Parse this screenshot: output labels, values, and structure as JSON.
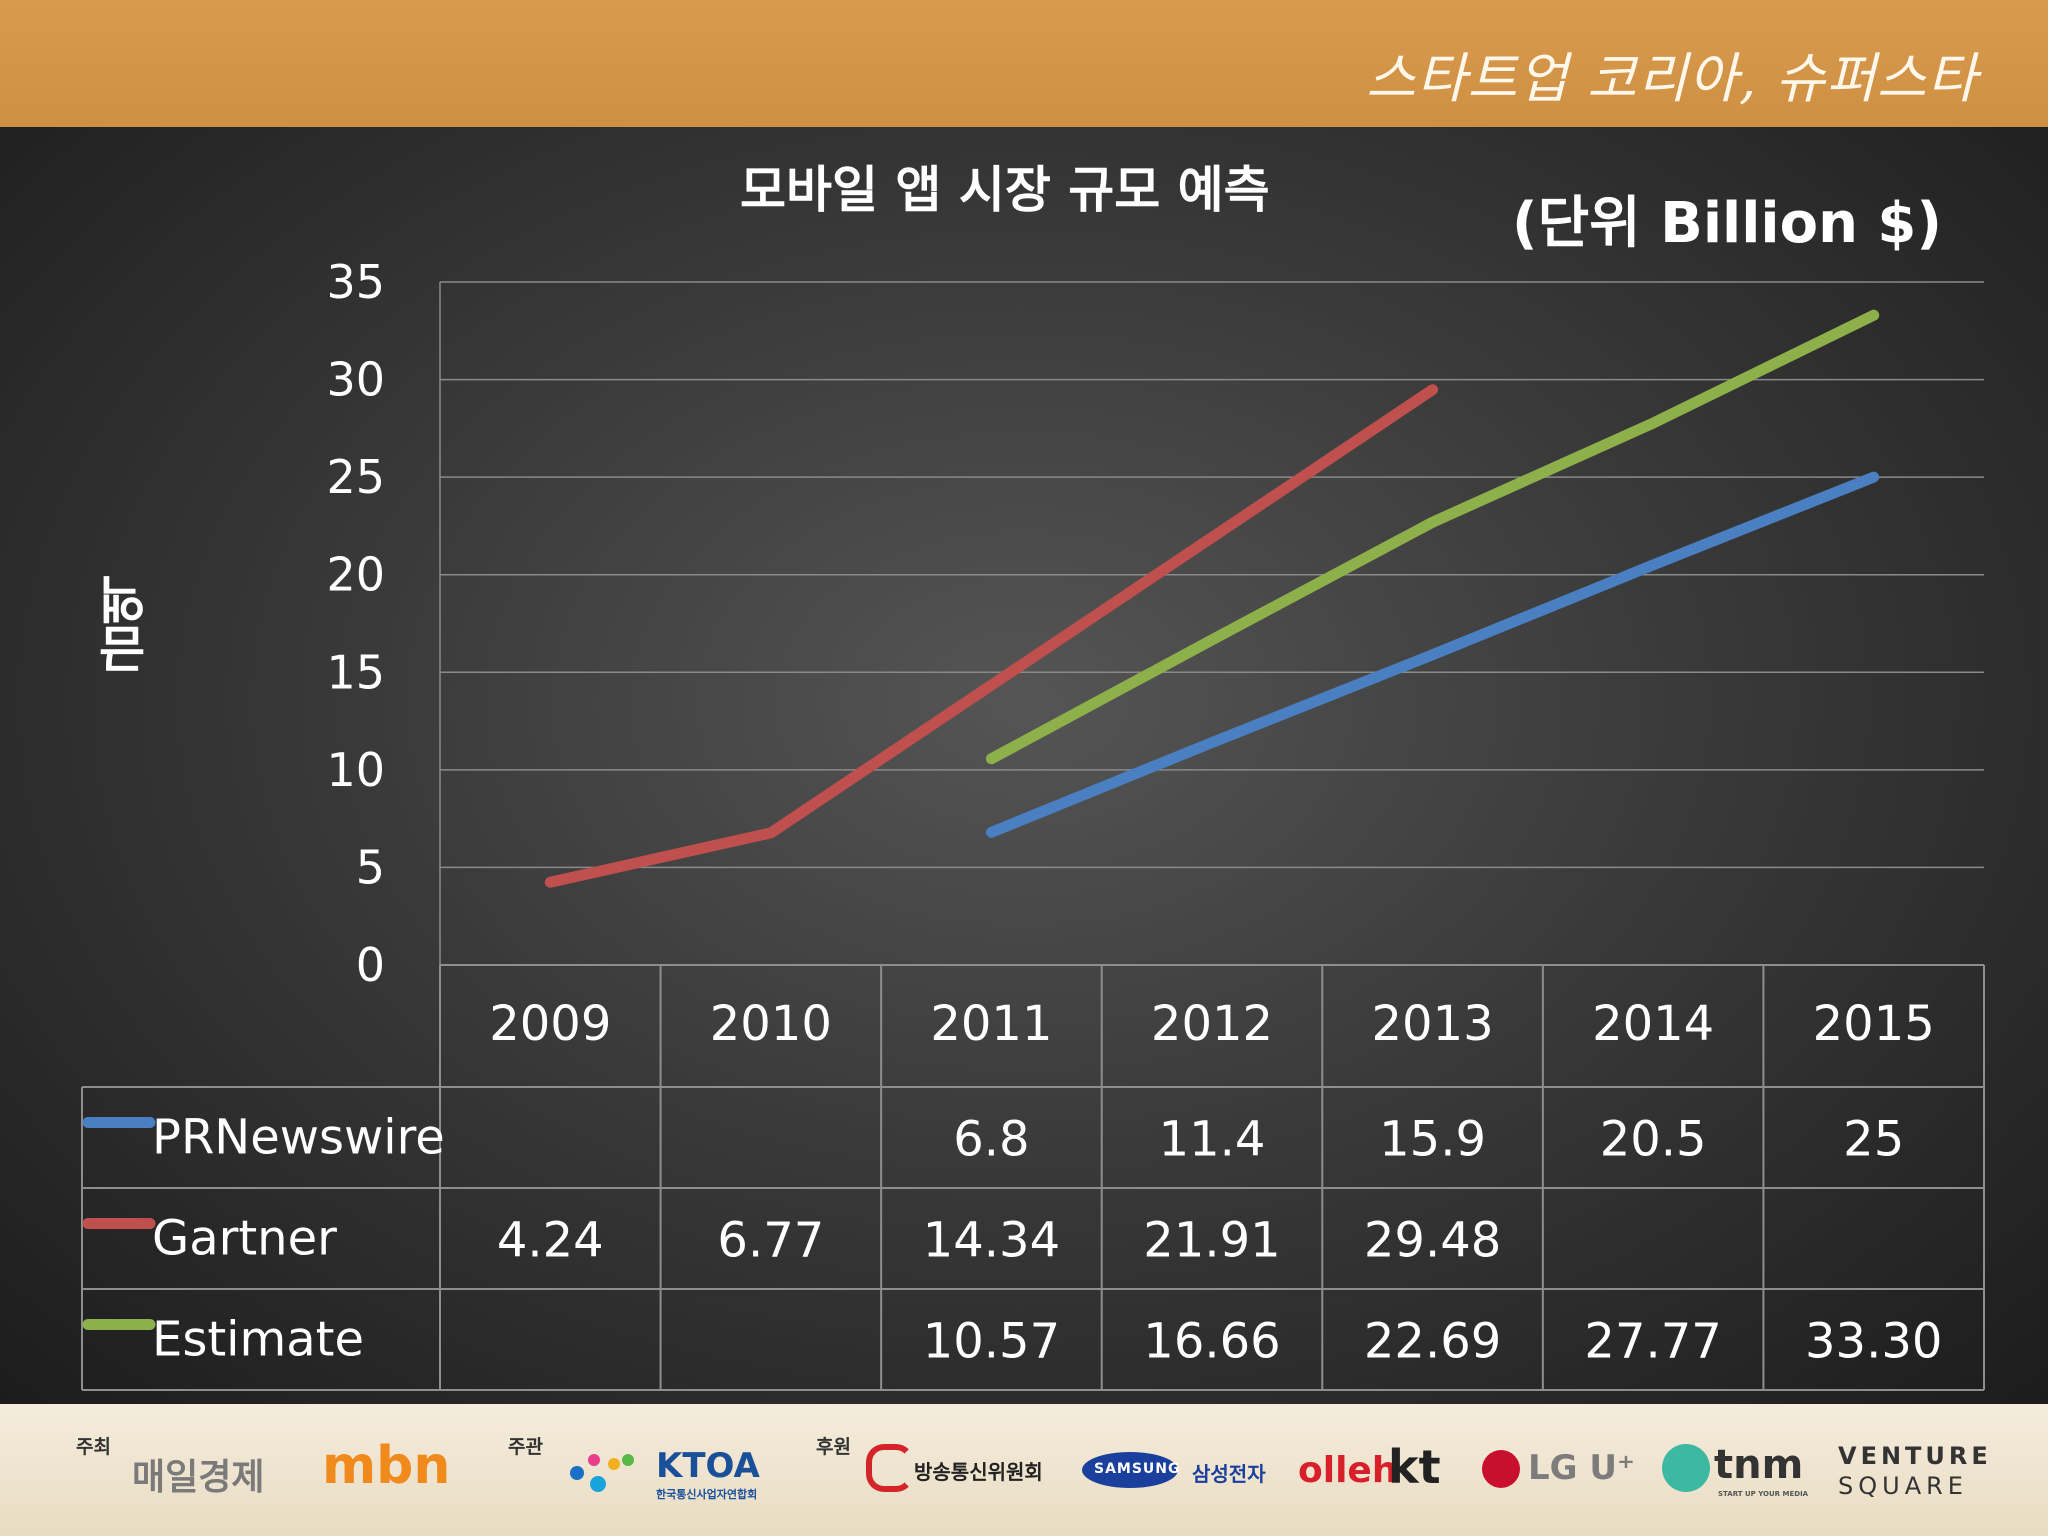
{
  "header": {
    "brand": "스타트업 코리아, 슈퍼스타"
  },
  "chart": {
    "title": "모바일 앱 시장 규모 예측",
    "unit_label": "(단위 Billion $)",
    "y_axis_label": "금액"
  },
  "chart_data": {
    "type": "line",
    "title": "모바일 앱 시장 규모 예측",
    "ylabel": "금액",
    "ylim": [
      0,
      35
    ],
    "yticks": [
      0,
      5,
      10,
      15,
      20,
      25,
      30,
      35
    ],
    "grid": true,
    "legend": "data-table",
    "categories": [
      "2009",
      "2010",
      "2011",
      "2012",
      "2013",
      "2014",
      "2015"
    ],
    "series": [
      {
        "name": "PRNewswire",
        "color": "#4a7fc1",
        "values": [
          null,
          null,
          6.8,
          11.4,
          15.9,
          20.5,
          25
        ],
        "labels": [
          "",
          "",
          "6.8",
          "11.4",
          "15.9",
          "20.5",
          "25"
        ]
      },
      {
        "name": "Gartner",
        "color": "#c0504d",
        "values": [
          4.24,
          6.77,
          14.34,
          21.91,
          29.48,
          null,
          null
        ],
        "labels": [
          "4.24",
          "6.77",
          "14.34",
          "21.91",
          "29.48",
          "",
          ""
        ]
      },
      {
        "name": "Estimate",
        "color": "#8db04a",
        "values": [
          null,
          null,
          10.57,
          16.66,
          22.69,
          27.77,
          33.3
        ],
        "labels": [
          "",
          "",
          "10.57",
          "16.66",
          "22.69",
          "27.77",
          "33.30"
        ]
      }
    ]
  },
  "footer": {
    "host_label": "주최",
    "host1": "매일경제",
    "host2": "mbn",
    "organizer_label": "주관",
    "organizer": "KTOA",
    "organizer_sub": "한국통신사업자연합회",
    "sponsor_label": "후원",
    "sponsor1": "방송통신위원회",
    "sponsor2a": "SAMSUNG",
    "sponsor2b": "삼성전자",
    "sponsor3": "olleh",
    "sponsor3b": "kt",
    "sponsor4": "LG U⁺",
    "sponsor5": "tnm",
    "sponsor5_sub": "START UP YOUR MEDIA",
    "sponsor6a": "VENTURE",
    "sponsor6b": "SQUARE"
  }
}
